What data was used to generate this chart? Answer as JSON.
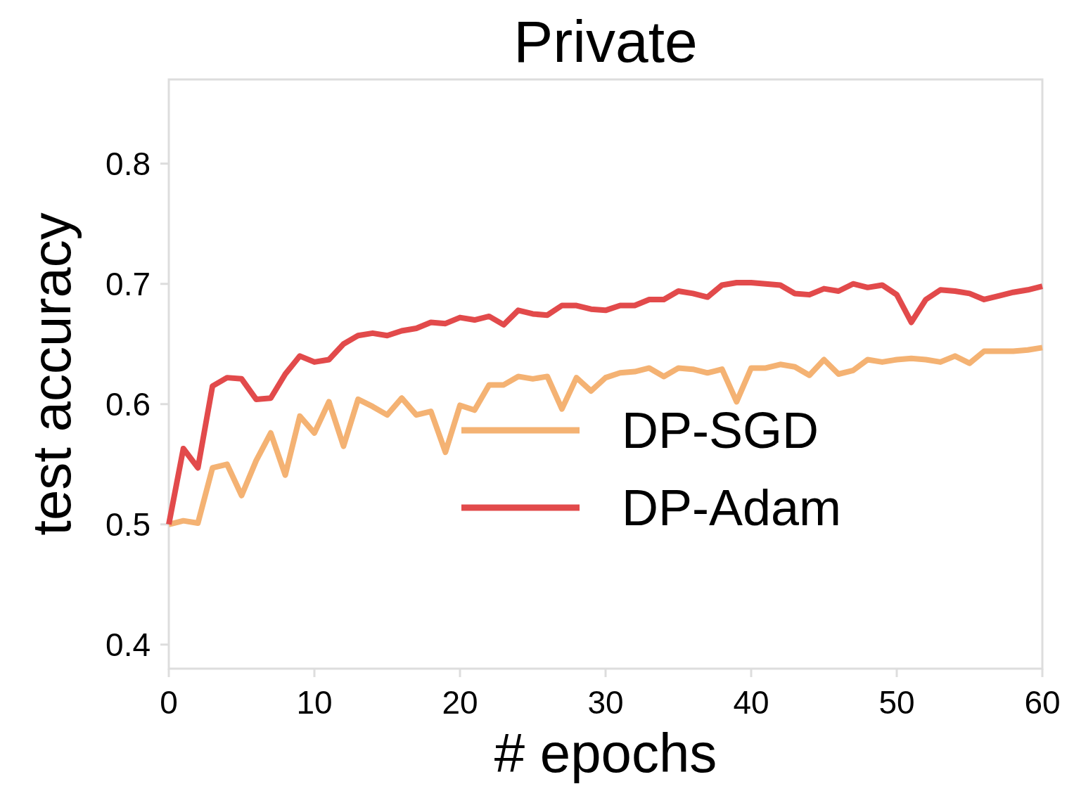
{
  "chart_data": {
    "type": "line",
    "title": "Private",
    "xlabel": "# epochs",
    "ylabel": "test accuracy",
    "x": [
      0,
      1,
      2,
      3,
      4,
      5,
      6,
      7,
      8,
      9,
      10,
      11,
      12,
      13,
      14,
      15,
      16,
      17,
      18,
      19,
      20,
      21,
      22,
      23,
      24,
      25,
      26,
      27,
      28,
      29,
      30,
      31,
      32,
      33,
      34,
      35,
      36,
      37,
      38,
      39,
      40,
      41,
      42,
      43,
      44,
      45,
      46,
      47,
      48,
      49,
      50,
      51,
      52,
      53,
      54,
      55,
      56,
      57,
      58,
      59,
      60
    ],
    "series": [
      {
        "name": "DP-SGD",
        "color": "#f4b273",
        "values": [
          0.5,
          0.503,
          0.501,
          0.547,
          0.55,
          0.524,
          0.553,
          0.576,
          0.541,
          0.59,
          0.576,
          0.602,
          0.565,
          0.604,
          0.598,
          0.591,
          0.605,
          0.591,
          0.594,
          0.56,
          0.599,
          0.595,
          0.616,
          0.616,
          0.623,
          0.621,
          0.623,
          0.596,
          0.622,
          0.611,
          0.622,
          0.626,
          0.627,
          0.63,
          0.623,
          0.63,
          0.629,
          0.626,
          0.629,
          0.602,
          0.63,
          0.63,
          0.633,
          0.631,
          0.624,
          0.637,
          0.625,
          0.628,
          0.637,
          0.635,
          0.637,
          0.638,
          0.637,
          0.635,
          0.64,
          0.634,
          0.644,
          0.644,
          0.644,
          0.645,
          0.647
        ]
      },
      {
        "name": "DP-Adam",
        "color": "#e24a4b",
        "values": [
          0.5,
          0.563,
          0.547,
          0.615,
          0.622,
          0.621,
          0.604,
          0.605,
          0.625,
          0.64,
          0.635,
          0.637,
          0.65,
          0.657,
          0.659,
          0.657,
          0.661,
          0.663,
          0.668,
          0.667,
          0.672,
          0.67,
          0.673,
          0.666,
          0.678,
          0.675,
          0.674,
          0.682,
          0.682,
          0.679,
          0.678,
          0.682,
          0.682,
          0.687,
          0.687,
          0.694,
          0.692,
          0.689,
          0.699,
          0.701,
          0.701,
          0.7,
          0.699,
          0.692,
          0.691,
          0.696,
          0.694,
          0.7,
          0.697,
          0.699,
          0.691,
          0.668,
          0.687,
          0.695,
          0.694,
          0.692,
          0.687,
          0.69,
          0.693,
          0.695,
          0.698
        ]
      }
    ],
    "xlim": [
      0,
      60
    ],
    "xticks": [
      0,
      10,
      20,
      30,
      40,
      50,
      60
    ],
    "ylim": [
      0.38,
      0.87
    ],
    "yticks": [
      0.4,
      0.5,
      0.6,
      0.7,
      0.8
    ],
    "legend": "right",
    "grid": false
  }
}
